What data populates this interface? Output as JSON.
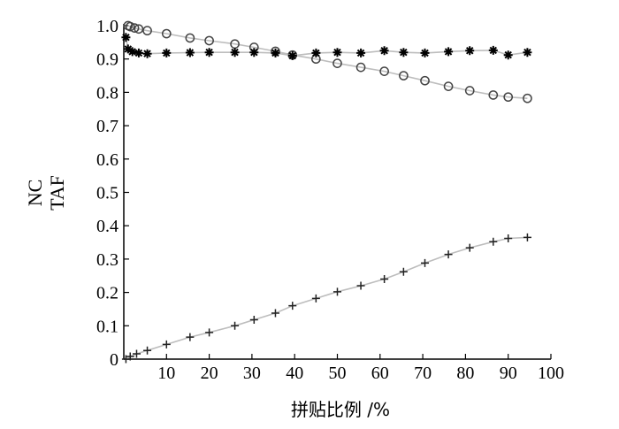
{
  "chart_data": {
    "type": "line",
    "xlabel": "拼贴比例 /%",
    "ylabel": [
      "NC",
      "TAF"
    ],
    "xlim": [
      0,
      100
    ],
    "ylim": [
      0,
      1.0
    ],
    "x_ticks": [
      10,
      20,
      30,
      40,
      50,
      60,
      70,
      80,
      90,
      100
    ],
    "y_ticks": [
      0,
      0.1,
      0.2,
      0.3,
      0.4,
      0.5,
      0.6,
      0.7,
      0.8,
      0.9,
      1.0
    ],
    "y_tick_labels": [
      "0",
      "0.1",
      "0.2",
      "0.3",
      "0.4",
      "0.5",
      "0.6",
      "0.7",
      "0.8",
      "0.9",
      "1.0"
    ],
    "grid": false,
    "series": [
      {
        "marker": "circle",
        "points": [
          [
            1,
            1.0
          ],
          [
            1.5,
            0.997
          ],
          [
            2.5,
            0.993
          ],
          [
            3.5,
            0.99
          ],
          [
            5.5,
            0.985
          ],
          [
            10,
            0.976
          ],
          [
            15.5,
            0.963
          ],
          [
            20,
            0.955
          ],
          [
            26,
            0.945
          ],
          [
            30.5,
            0.935
          ],
          [
            35.5,
            0.923
          ],
          [
            39.5,
            0.912
          ],
          [
            45,
            0.9
          ],
          [
            50,
            0.887
          ],
          [
            55.5,
            0.875
          ],
          [
            61,
            0.863
          ],
          [
            65.5,
            0.85
          ],
          [
            70.5,
            0.835
          ],
          [
            76,
            0.818
          ],
          [
            81,
            0.805
          ],
          [
            86.5,
            0.792
          ],
          [
            90,
            0.786
          ],
          [
            94.5,
            0.782
          ]
        ]
      },
      {
        "marker": "star",
        "points": [
          [
            0.5,
            0.965
          ],
          [
            1,
            0.93
          ],
          [
            2,
            0.922
          ],
          [
            3.5,
            0.918
          ],
          [
            5.5,
            0.916
          ],
          [
            10,
            0.918
          ],
          [
            15.5,
            0.919
          ],
          [
            20,
            0.92
          ],
          [
            26,
            0.92
          ],
          [
            30.5,
            0.92
          ],
          [
            35.5,
            0.918
          ],
          [
            39.5,
            0.91
          ],
          [
            45,
            0.918
          ],
          [
            50,
            0.92
          ],
          [
            55.5,
            0.918
          ],
          [
            61,
            0.925
          ],
          [
            65.5,
            0.92
          ],
          [
            70.5,
            0.918
          ],
          [
            76,
            0.922
          ],
          [
            81,
            0.925
          ],
          [
            86.5,
            0.926
          ],
          [
            90,
            0.912
          ],
          [
            94.5,
            0.92
          ]
        ]
      },
      {
        "marker": "plus",
        "points": [
          [
            0.5,
            0
          ],
          [
            1.5,
            0.008
          ],
          [
            3,
            0.016
          ],
          [
            5.5,
            0.026
          ],
          [
            10,
            0.044
          ],
          [
            15.5,
            0.066
          ],
          [
            20,
            0.08
          ],
          [
            26,
            0.1
          ],
          [
            30.5,
            0.118
          ],
          [
            35.5,
            0.138
          ],
          [
            39.5,
            0.16
          ],
          [
            45,
            0.182
          ],
          [
            50,
            0.202
          ],
          [
            55.5,
            0.22
          ],
          [
            61,
            0.24
          ],
          [
            65.5,
            0.262
          ],
          [
            70.5,
            0.288
          ],
          [
            76,
            0.314
          ],
          [
            81,
            0.334
          ],
          [
            86.5,
            0.352
          ],
          [
            90,
            0.362
          ],
          [
            94.5,
            0.365
          ]
        ]
      }
    ]
  }
}
